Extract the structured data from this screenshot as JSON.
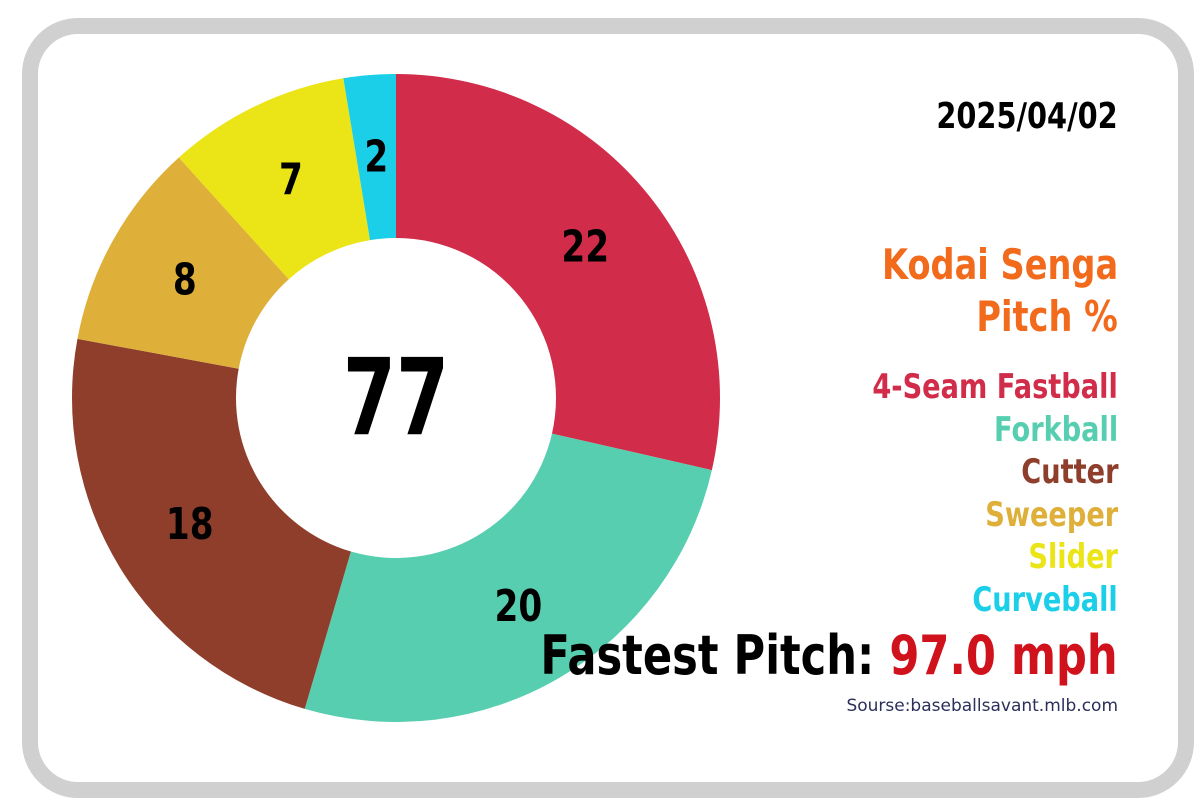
{
  "chart_data": {
    "type": "donut",
    "date": "2025/04/02",
    "title_line1": "Kodai Senga",
    "title_line2": "Pitch %",
    "total": "77",
    "series": [
      {
        "name": "4-Seam Fastball",
        "value": 22,
        "color": "#d12c4a"
      },
      {
        "name": "Forkball",
        "value": 20,
        "color": "#56ceaf"
      },
      {
        "name": "Cutter",
        "value": 18,
        "color": "#8e3e2b"
      },
      {
        "name": "Sweeper",
        "value": 8,
        "color": "#deb03a"
      },
      {
        "name": "Slider",
        "value": 7,
        "color": "#ebe417"
      },
      {
        "name": "Curveball",
        "value": 2,
        "color": "#1ccfe9"
      }
    ],
    "fastest_label": "Fastest Pitch:",
    "fastest_value": "97.0 mph",
    "source": "Sourse:baseballsavant.mlb.com"
  }
}
